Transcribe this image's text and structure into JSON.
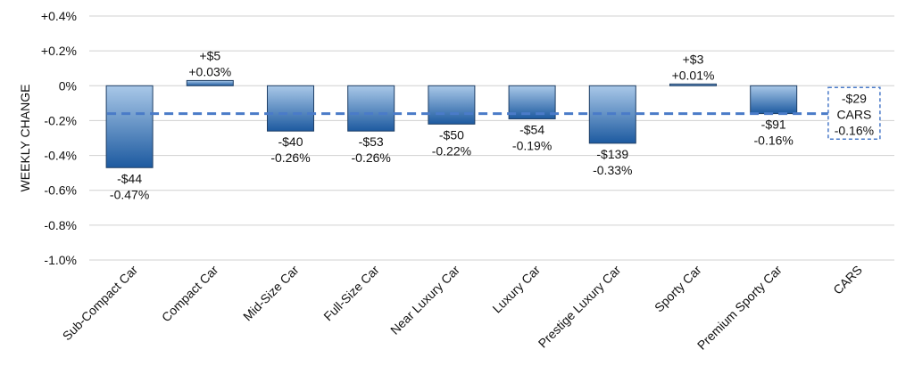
{
  "chart_data": {
    "type": "bar",
    "ylabel": "WEEKLY CHANGE",
    "ylim": [
      -1.0,
      0.4
    ],
    "yticks": [
      0.4,
      0.2,
      0.0,
      -0.2,
      -0.4,
      -0.6,
      -0.8,
      -1.0
    ],
    "ytick_labels": [
      "+0.4%",
      "+0.2%",
      "0%",
      "-0.2%",
      "-0.4%",
      "-0.6%",
      "-0.8%",
      "-1.0%"
    ],
    "grid": true,
    "categories": [
      "Sub-Compact Car",
      "Compact Car",
      "Mid-Size Car",
      "Full-Size Car",
      "Near Luxury Car",
      "Luxury Car",
      "Prestige Luxury Car",
      "Sporty Car",
      "Premium Sporty Car",
      "CARS"
    ],
    "values": [
      -0.47,
      0.03,
      -0.26,
      -0.26,
      -0.22,
      -0.19,
      -0.33,
      0.01,
      -0.16,
      -0.16
    ],
    "dollar_labels": [
      "-$44",
      "+$5",
      "-$40",
      "-$53",
      "-$50",
      "-$54",
      "-$139",
      "+$3",
      "-$91",
      "-$29"
    ],
    "percent_labels": [
      "-0.47%",
      "+0.03%",
      "-0.26%",
      "-0.26%",
      "-0.22%",
      "-0.19%",
      "-0.33%",
      "+0.01%",
      "-0.16%",
      "-0.16%"
    ],
    "reference_line": {
      "value": -0.16,
      "style": "dashed",
      "color": "#4a7bc8",
      "box_category": "CARS",
      "box_lines": [
        "-$29",
        "CARS",
        "-0.16%"
      ]
    },
    "colors": {
      "bar_top": "#a9c8e8",
      "bar_bottom": "#1d5aa0",
      "bar_stroke": "#1f3f66",
      "grid": "#d0d0d0"
    }
  }
}
